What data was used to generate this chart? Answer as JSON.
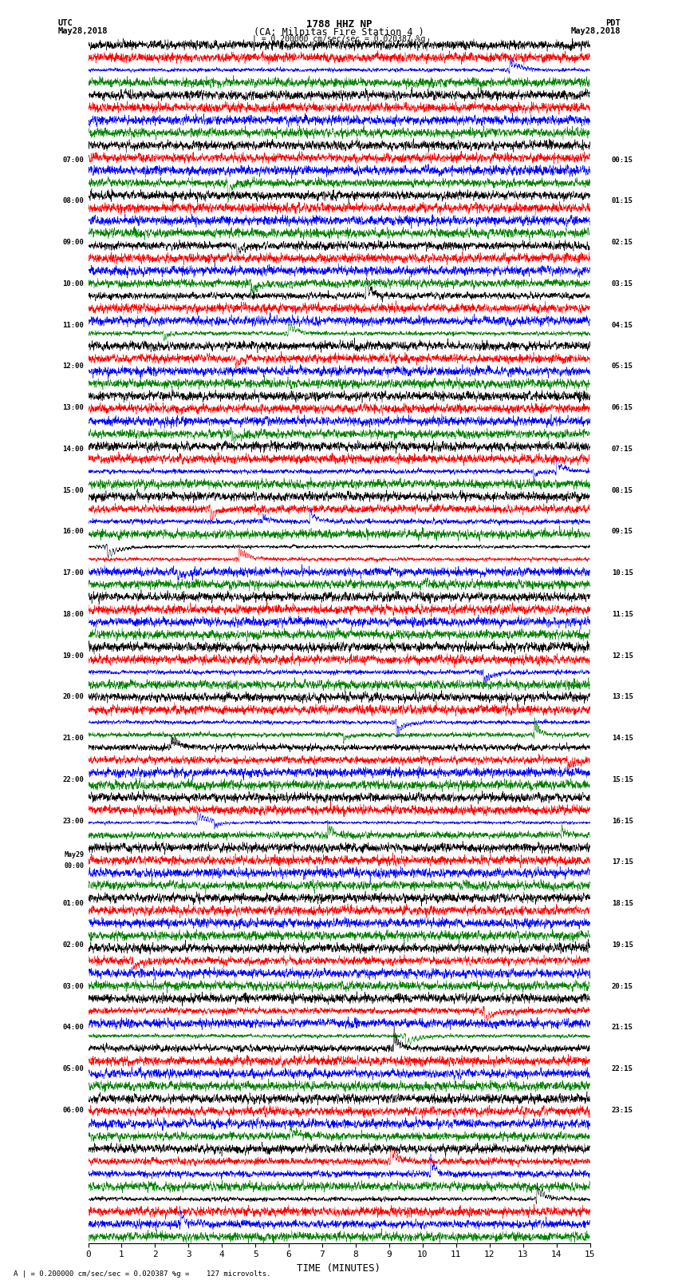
{
  "title_line1": "1788 HHZ NP",
  "title_line2": "(CA: Milpitas Fire Station 4 )",
  "scale_text": "| = 0.200000 cm/sec/sec = 0.020387 %g",
  "bottom_label": "TIME (MINUTES)",
  "bottom_note": "A | = 0.200000 cm/sec/sec = 0.020387 %g =    127 microvolts.",
  "utc_labels": [
    "07:00",
    "",
    "",
    "",
    "08:00",
    "",
    "",
    "",
    "09:00",
    "",
    "",
    "",
    "10:00",
    "",
    "",
    "",
    "11:00",
    "",
    "",
    "",
    "12:00",
    "",
    "",
    "",
    "13:00",
    "",
    "",
    "",
    "14:00",
    "",
    "",
    "",
    "15:00",
    "",
    "",
    "",
    "16:00",
    "",
    "",
    "",
    "17:00",
    "",
    "",
    "",
    "18:00",
    "",
    "",
    "",
    "19:00",
    "",
    "",
    "",
    "20:00",
    "",
    "",
    "",
    "21:00",
    "",
    "",
    "",
    "22:00",
    "",
    "",
    "",
    "23:00",
    "",
    "",
    "",
    "May29\n00:00",
    "",
    "",
    "",
    "01:00",
    "",
    "",
    "",
    "02:00",
    "",
    "",
    "",
    "03:00",
    "",
    "",
    "",
    "04:00",
    "",
    "",
    "",
    "05:00",
    "",
    "",
    "",
    "06:00",
    "",
    "",
    ""
  ],
  "pdt_labels": [
    "00:15",
    "",
    "",
    "",
    "01:15",
    "",
    "",
    "",
    "02:15",
    "",
    "",
    "",
    "03:15",
    "",
    "",
    "",
    "04:15",
    "",
    "",
    "",
    "05:15",
    "",
    "",
    "",
    "06:15",
    "",
    "",
    "",
    "07:15",
    "",
    "",
    "",
    "08:15",
    "",
    "",
    "",
    "09:15",
    "",
    "",
    "",
    "10:15",
    "",
    "",
    "",
    "11:15",
    "",
    "",
    "",
    "12:15",
    "",
    "",
    "",
    "13:15",
    "",
    "",
    "",
    "14:15",
    "",
    "",
    "",
    "15:15",
    "",
    "",
    "",
    "16:15",
    "",
    "",
    "",
    "17:15",
    "",
    "",
    "",
    "18:15",
    "",
    "",
    "",
    "19:15",
    "",
    "",
    "",
    "20:15",
    "",
    "",
    "",
    "21:15",
    "",
    "",
    "",
    "22:15",
    "",
    "",
    "",
    "23:15",
    "",
    "",
    ""
  ],
  "trace_colors": [
    "black",
    "red",
    "blue",
    "green"
  ],
  "num_traces": 96,
  "xmin": 0,
  "xmax": 15,
  "figwidth": 8.5,
  "figheight": 16.13,
  "bg_color": "white"
}
